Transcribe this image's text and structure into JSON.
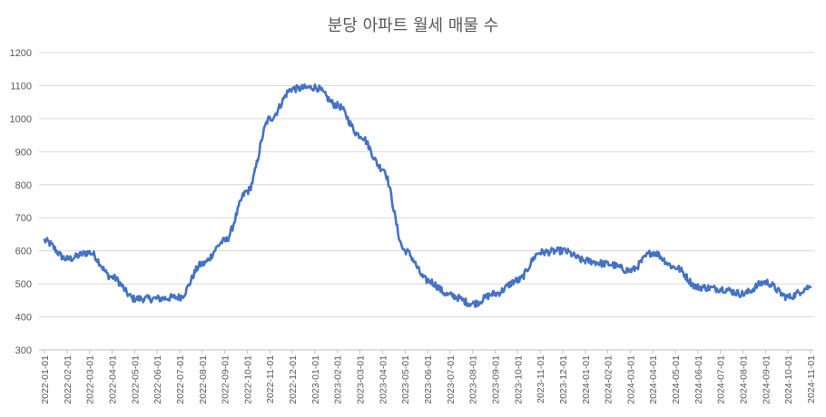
{
  "chart_data": {
    "type": "line",
    "title": "분당 아파트 월세 매물 수",
    "xlabel": "",
    "ylabel": "",
    "ylim": [
      300,
      1200
    ],
    "yticks": [
      "300",
      "400",
      "500",
      "600",
      "700",
      "800",
      "900",
      "1000",
      "1100",
      "1200"
    ],
    "grid": true,
    "line_color": "#4472C4",
    "x": [
      "2022-01-01",
      "2022-02-01",
      "2022-03-01",
      "2022-04-01",
      "2022-05-01",
      "2022-06-01",
      "2022-07-01",
      "2022-08-01",
      "2022-09-01",
      "2022-10-01",
      "2022-11-01",
      "2022-12-01",
      "2023-01-01",
      "2023-02-01",
      "2023-03-01",
      "2023-04-01",
      "2023-05-01",
      "2023-06-01",
      "2023-07-01",
      "2023-08-01",
      "2023-09-01",
      "2023-10-01",
      "2023-11-01",
      "2023-12-01",
      "2024-01-01",
      "2024-02-01",
      "2024-03-01",
      "2024-04-01",
      "2024-05-01",
      "2024-06-01",
      "2024-07-01",
      "2024-08-01",
      "2024-09-01",
      "2024-10-01",
      "2024-11-01"
    ],
    "xticks": [
      "2022-01-01",
      "2022-02-01",
      "2022-03-01",
      "2022-04-01",
      "2022-05-01",
      "2022-06-01",
      "2022-07-01",
      "2022-08-01",
      "2022-09-01",
      "2022-10-01",
      "2022-11-01",
      "2022-12-01",
      "2023-01-01",
      "2023-02-01",
      "2023-03-01",
      "2023-04-01",
      "2023-05-01",
      "2023-06-01",
      "2023-07-01",
      "2023-08-01",
      "2023-09-01",
      "2023-10-01",
      "2023-11-01",
      "2023-12-01",
      "2024-01-01",
      "2024-02-01",
      "2024-03-01",
      "2024-04-01",
      "2024-05-01",
      "2024-06-01",
      "2024-07-01",
      "2024-08-01",
      "2024-09-01",
      "2024-10-01",
      "2024-11-01"
    ],
    "series": [
      {
        "values": [
          630,
          575,
          595,
          520,
          455,
          455,
          460,
          560,
          630,
          780,
          1000,
          1090,
          1095,
          1040,
          950,
          850,
          600,
          510,
          465,
          440,
          470,
          510,
          595,
          600,
          570,
          560,
          540,
          595,
          550,
          490,
          485,
          470,
          505,
          460,
          490
        ]
      }
    ]
  }
}
